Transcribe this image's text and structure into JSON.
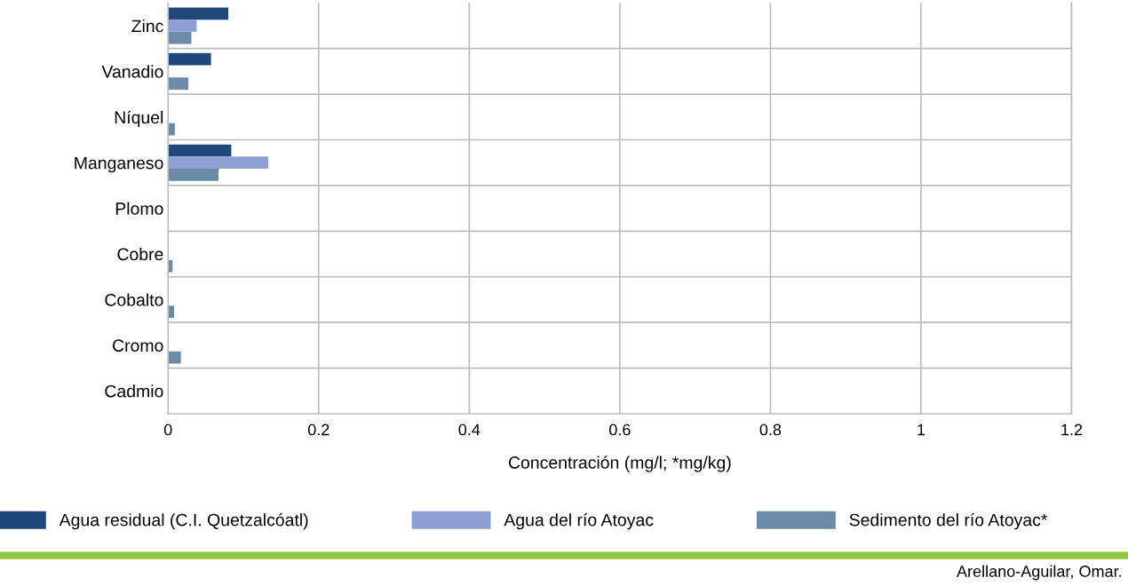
{
  "chart_data": {
    "type": "bar",
    "orientation": "horizontal",
    "xlabel": "Concentración (mg/l; *mg/kg)",
    "categories": [
      "Zinc",
      "Vanadio",
      "Níquel",
      "Manganeso",
      "Plomo",
      "Cobre",
      "Cobalto",
      "Cromo",
      "Cadmio"
    ],
    "series": [
      {
        "name": "Agua residual (C.I. Quetzalcóatl)",
        "color": "#1f477a",
        "values": [
          0.08,
          0.057,
          null,
          0.084,
          null,
          null,
          null,
          null,
          null
        ]
      },
      {
        "name": "Agua del río Atoyac",
        "color": "#8e9fd4",
        "values": [
          0.038,
          null,
          null,
          0.133,
          null,
          null,
          null,
          null,
          null
        ]
      },
      {
        "name": "Sedimento del río Atoyac*",
        "color": "#6b8ba8",
        "values": [
          0.031,
          0.027,
          0.009,
          0.067,
          null,
          0.006,
          0.008,
          0.017,
          null
        ]
      }
    ],
    "xlim": [
      0,
      1.2
    ],
    "xticks": [
      0,
      0.2,
      0.4,
      0.6,
      0.8,
      1,
      1.2
    ],
    "grid": true,
    "legend": "bottom",
    "annotations": [
      "Arellano-Aguilar, Omar."
    ]
  }
}
